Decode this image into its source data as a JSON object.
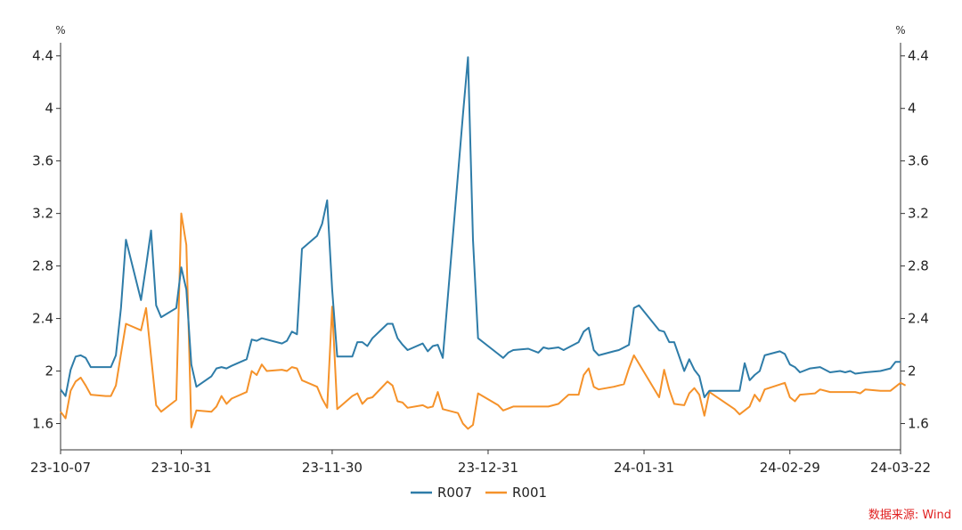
{
  "chart_data": {
    "type": "line",
    "y_unit_left": "%",
    "y_unit_right": "%",
    "ylim": [
      1.4,
      4.5
    ],
    "y_ticks": [
      1.6,
      2,
      2.4,
      2.8,
      3.2,
      3.6,
      4,
      4.4
    ],
    "y_tick_labels": [
      "1.6",
      "2",
      "2.4",
      "2.8",
      "3.2",
      "3.6",
      "4",
      "4.4"
    ],
    "x_range": [
      "2023-10-07",
      "2024-03-22"
    ],
    "x_ticks": [
      {
        "date": "2023-10-07",
        "label": "23-10-07"
      },
      {
        "date": "2023-10-31",
        "label": "23-10-31"
      },
      {
        "date": "2023-11-30",
        "label": "23-11-30"
      },
      {
        "date": "2023-12-31",
        "label": "23-12-31"
      },
      {
        "date": "2024-01-31",
        "label": "24-01-31"
      },
      {
        "date": "2024-02-29",
        "label": "24-02-29"
      },
      {
        "date": "2024-03-22",
        "label": "24-03-22"
      }
    ],
    "legend_position": "bottom-center",
    "grid": false,
    "series": [
      {
        "name": "R007",
        "color": "#2e7ca8",
        "points": [
          [
            "2023-10-07",
            1.86
          ],
          [
            "2023-10-08",
            1.81
          ],
          [
            "2023-10-09",
            2.01
          ],
          [
            "2023-10-10",
            2.11
          ],
          [
            "2023-10-11",
            2.12
          ],
          [
            "2023-10-12",
            2.1
          ],
          [
            "2023-10-13",
            2.03
          ],
          [
            "2023-10-16",
            2.03
          ],
          [
            "2023-10-17",
            2.03
          ],
          [
            "2023-10-18",
            2.12
          ],
          [
            "2023-10-19",
            2.48
          ],
          [
            "2023-10-20",
            3.0
          ],
          [
            "2023-10-23",
            2.54
          ],
          [
            "2023-10-24",
            2.8
          ],
          [
            "2023-10-25",
            3.07
          ],
          [
            "2023-10-26",
            2.5
          ],
          [
            "2023-10-27",
            2.41
          ],
          [
            "2023-10-30",
            2.48
          ],
          [
            "2023-10-31",
            2.79
          ],
          [
            "2023-11-01",
            2.62
          ],
          [
            "2023-11-02",
            2.05
          ],
          [
            "2023-11-03",
            1.88
          ],
          [
            "2023-11-06",
            1.96
          ],
          [
            "2023-11-07",
            2.02
          ],
          [
            "2023-11-08",
            2.03
          ],
          [
            "2023-11-09",
            2.02
          ],
          [
            "2023-11-10",
            2.04
          ],
          [
            "2023-11-13",
            2.09
          ],
          [
            "2023-11-14",
            2.24
          ],
          [
            "2023-11-15",
            2.23
          ],
          [
            "2023-11-16",
            2.25
          ],
          [
            "2023-11-20",
            2.21
          ],
          [
            "2023-11-21",
            2.23
          ],
          [
            "2023-11-22",
            2.3
          ],
          [
            "2023-11-23",
            2.28
          ],
          [
            "2023-11-24",
            2.93
          ],
          [
            "2023-11-27",
            3.03
          ],
          [
            "2023-11-28",
            3.12
          ],
          [
            "2023-11-29",
            3.3
          ],
          [
            "2023-11-30",
            2.62
          ],
          [
            "2023-12-01",
            2.11
          ],
          [
            "2023-12-04",
            2.11
          ],
          [
            "2023-12-05",
            2.22
          ],
          [
            "2023-12-06",
            2.22
          ],
          [
            "2023-12-07",
            2.19
          ],
          [
            "2023-12-08",
            2.25
          ],
          [
            "2023-12-11",
            2.36
          ],
          [
            "2023-12-12",
            2.36
          ],
          [
            "2023-12-13",
            2.25
          ],
          [
            "2023-12-14",
            2.2
          ],
          [
            "2023-12-15",
            2.16
          ],
          [
            "2023-12-18",
            2.21
          ],
          [
            "2023-12-19",
            2.15
          ],
          [
            "2023-12-20",
            2.19
          ],
          [
            "2023-12-21",
            2.2
          ],
          [
            "2023-12-22",
            2.1
          ],
          [
            "2023-12-26",
            3.95
          ],
          [
            "2023-12-27",
            4.39
          ],
          [
            "2023-12-28",
            3.0
          ],
          [
            "2023-12-29",
            2.25
          ],
          [
            "2024-01-02",
            2.13
          ],
          [
            "2024-01-03",
            2.1
          ],
          [
            "2024-01-04",
            2.14
          ],
          [
            "2024-01-05",
            2.16
          ],
          [
            "2024-01-08",
            2.17
          ],
          [
            "2024-01-10",
            2.14
          ],
          [
            "2024-01-11",
            2.18
          ],
          [
            "2024-01-12",
            2.17
          ],
          [
            "2024-01-14",
            2.18
          ],
          [
            "2024-01-15",
            2.16
          ],
          [
            "2024-01-18",
            2.22
          ],
          [
            "2024-01-19",
            2.3
          ],
          [
            "2024-01-20",
            2.33
          ],
          [
            "2024-01-21",
            2.16
          ],
          [
            "2024-01-22",
            2.12
          ],
          [
            "2024-01-25",
            2.15
          ],
          [
            "2024-01-26",
            2.16
          ],
          [
            "2024-01-28",
            2.2
          ],
          [
            "2024-01-29",
            2.48
          ],
          [
            "2024-01-30",
            2.5
          ],
          [
            "2024-02-03",
            2.31
          ],
          [
            "2024-02-04",
            2.3
          ],
          [
            "2024-02-05",
            2.22
          ],
          [
            "2024-02-06",
            2.22
          ],
          [
            "2024-02-08",
            2.0
          ],
          [
            "2024-02-09",
            2.09
          ],
          [
            "2024-02-10",
            2.01
          ],
          [
            "2024-02-11",
            1.96
          ],
          [
            "2024-02-12",
            1.8
          ],
          [
            "2024-02-13",
            1.85
          ],
          [
            "2024-02-19",
            1.85
          ],
          [
            "2024-02-20",
            2.06
          ],
          [
            "2024-02-21",
            1.93
          ],
          [
            "2024-02-22",
            1.97
          ],
          [
            "2024-02-23",
            2.0
          ],
          [
            "2024-02-24",
            2.12
          ],
          [
            "2024-02-26",
            2.14
          ],
          [
            "2024-02-27",
            2.15
          ],
          [
            "2024-02-28",
            2.13
          ],
          [
            "2024-02-29",
            2.05
          ],
          [
            "2024-03-01",
            2.03
          ],
          [
            "2024-03-02",
            1.99
          ],
          [
            "2024-03-04",
            2.02
          ],
          [
            "2024-03-06",
            2.03
          ],
          [
            "2024-03-08",
            1.99
          ],
          [
            "2024-03-10",
            2.0
          ],
          [
            "2024-03-11",
            1.99
          ],
          [
            "2024-03-12",
            2.0
          ],
          [
            "2024-03-13",
            1.98
          ],
          [
            "2024-03-15",
            1.99
          ],
          [
            "2024-03-18",
            2.0
          ],
          [
            "2024-03-20",
            2.02
          ],
          [
            "2024-03-21",
            2.07
          ],
          [
            "2024-03-22",
            2.07
          ]
        ]
      },
      {
        "name": "R001",
        "color": "#f5922a",
        "points": [
          [
            "2023-10-07",
            1.69
          ],
          [
            "2023-10-08",
            1.64
          ],
          [
            "2023-10-09",
            1.85
          ],
          [
            "2023-10-10",
            1.92
          ],
          [
            "2023-10-11",
            1.95
          ],
          [
            "2023-10-12",
            1.89
          ],
          [
            "2023-10-13",
            1.82
          ],
          [
            "2023-10-16",
            1.81
          ],
          [
            "2023-10-17",
            1.81
          ],
          [
            "2023-10-18",
            1.89
          ],
          [
            "2023-10-19",
            2.13
          ],
          [
            "2023-10-20",
            2.36
          ],
          [
            "2023-10-23",
            2.31
          ],
          [
            "2023-10-24",
            2.48
          ],
          [
            "2023-10-25",
            2.11
          ],
          [
            "2023-10-26",
            1.74
          ],
          [
            "2023-10-27",
            1.69
          ],
          [
            "2023-10-30",
            1.78
          ],
          [
            "2023-10-31",
            3.2
          ],
          [
            "2023-11-01",
            2.96
          ],
          [
            "2023-11-02",
            1.57
          ],
          [
            "2023-11-03",
            1.7
          ],
          [
            "2023-11-06",
            1.69
          ],
          [
            "2023-11-07",
            1.73
          ],
          [
            "2023-11-08",
            1.81
          ],
          [
            "2023-11-09",
            1.75
          ],
          [
            "2023-11-10",
            1.79
          ],
          [
            "2023-11-13",
            1.84
          ],
          [
            "2023-11-14",
            2.0
          ],
          [
            "2023-11-15",
            1.97
          ],
          [
            "2023-11-16",
            2.05
          ],
          [
            "2023-11-17",
            2.0
          ],
          [
            "2023-11-20",
            2.01
          ],
          [
            "2023-11-21",
            2.0
          ],
          [
            "2023-11-22",
            2.03
          ],
          [
            "2023-11-23",
            2.02
          ],
          [
            "2023-11-24",
            1.93
          ],
          [
            "2023-11-27",
            1.88
          ],
          [
            "2023-11-28",
            1.79
          ],
          [
            "2023-11-29",
            1.72
          ],
          [
            "2023-11-30",
            2.49
          ],
          [
            "2023-12-01",
            1.71
          ],
          [
            "2023-12-04",
            1.81
          ],
          [
            "2023-12-05",
            1.83
          ],
          [
            "2023-12-06",
            1.75
          ],
          [
            "2023-12-07",
            1.79
          ],
          [
            "2023-12-08",
            1.8
          ],
          [
            "2023-12-11",
            1.92
          ],
          [
            "2023-12-12",
            1.89
          ],
          [
            "2023-12-13",
            1.77
          ],
          [
            "2023-12-14",
            1.76
          ],
          [
            "2023-12-15",
            1.72
          ],
          [
            "2023-12-18",
            1.74
          ],
          [
            "2023-12-19",
            1.72
          ],
          [
            "2023-12-20",
            1.73
          ],
          [
            "2023-12-21",
            1.84
          ],
          [
            "2023-12-22",
            1.71
          ],
          [
            "2023-12-25",
            1.68
          ],
          [
            "2023-12-26",
            1.6
          ],
          [
            "2023-12-27",
            1.56
          ],
          [
            "2023-12-28",
            1.59
          ],
          [
            "2023-12-29",
            1.83
          ],
          [
            "2024-01-02",
            1.74
          ],
          [
            "2024-01-03",
            1.7
          ],
          [
            "2024-01-05",
            1.73
          ],
          [
            "2024-01-08",
            1.73
          ],
          [
            "2024-01-10",
            1.73
          ],
          [
            "2024-01-12",
            1.73
          ],
          [
            "2024-01-14",
            1.75
          ],
          [
            "2024-01-16",
            1.82
          ],
          [
            "2024-01-18",
            1.82
          ],
          [
            "2024-01-19",
            1.97
          ],
          [
            "2024-01-20",
            2.02
          ],
          [
            "2024-01-21",
            1.88
          ],
          [
            "2024-01-22",
            1.86
          ],
          [
            "2024-01-25",
            1.88
          ],
          [
            "2024-01-27",
            1.9
          ],
          [
            "2024-01-28",
            2.02
          ],
          [
            "2024-01-29",
            2.12
          ],
          [
            "2024-02-03",
            1.8
          ],
          [
            "2024-02-04",
            2.01
          ],
          [
            "2024-02-05",
            1.86
          ],
          [
            "2024-02-06",
            1.75
          ],
          [
            "2024-02-08",
            1.74
          ],
          [
            "2024-02-09",
            1.83
          ],
          [
            "2024-02-10",
            1.87
          ],
          [
            "2024-02-11",
            1.82
          ],
          [
            "2024-02-12",
            1.66
          ],
          [
            "2024-02-13",
            1.84
          ],
          [
            "2024-02-18",
            1.71
          ],
          [
            "2024-02-19",
            1.67
          ],
          [
            "2024-02-21",
            1.73
          ],
          [
            "2024-02-22",
            1.82
          ],
          [
            "2024-02-23",
            1.77
          ],
          [
            "2024-02-24",
            1.86
          ],
          [
            "2024-02-28",
            1.91
          ],
          [
            "2024-02-29",
            1.8
          ],
          [
            "2024-03-01",
            1.77
          ],
          [
            "2024-03-02",
            1.82
          ],
          [
            "2024-03-05",
            1.83
          ],
          [
            "2024-03-06",
            1.86
          ],
          [
            "2024-03-08",
            1.84
          ],
          [
            "2024-03-11",
            1.84
          ],
          [
            "2024-03-13",
            1.84
          ],
          [
            "2024-03-14",
            1.83
          ],
          [
            "2024-03-15",
            1.86
          ],
          [
            "2024-03-18",
            1.85
          ],
          [
            "2024-03-20",
            1.85
          ],
          [
            "2024-03-21",
            1.88
          ],
          [
            "2024-03-22",
            1.91
          ],
          [
            "2024-03-23",
            1.89
          ]
        ]
      }
    ]
  },
  "source_text": "数据来源: Wind"
}
